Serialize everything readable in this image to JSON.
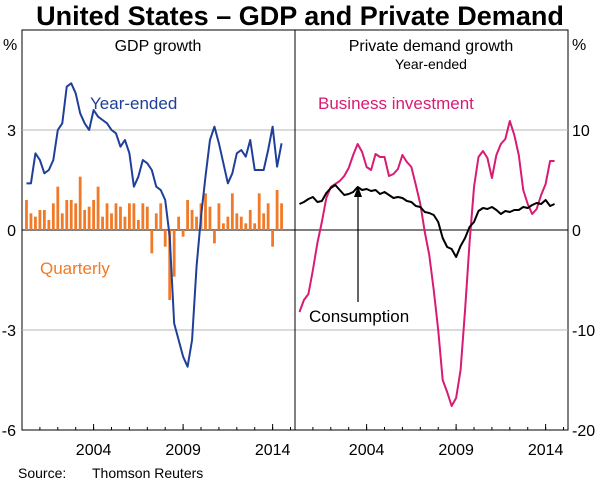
{
  "title": "United States – GDP and Private Demand",
  "source": {
    "label": "Source:",
    "value": "Thomson Reuters"
  },
  "colors": {
    "blue": "#1f3f99",
    "orange": "#f07a28",
    "magenta": "#d81b73",
    "black": "#000000",
    "grid": "#b5b5b5"
  },
  "chart_data": [
    {
      "type": "line",
      "title": "GDP growth",
      "unit_label": "%",
      "ylim": [
        -6,
        6
      ],
      "yticks": [
        -6,
        -3,
        0,
        3
      ],
      "xlim": [
        2000.0,
        2015.25
      ],
      "xticks": [
        {
          "label": "2004",
          "value": 2004.0
        },
        {
          "label": "2009",
          "value": 2009.0
        },
        {
          "label": "2014",
          "value": 2014.0
        }
      ],
      "series": [
        {
          "name": "Year-ended",
          "type": "line",
          "color": "#1f3f99",
          "x": [
            2000.25,
            2000.5,
            2000.75,
            2001.0,
            2001.25,
            2001.5,
            2001.75,
            2002.0,
            2002.25,
            2002.5,
            2002.75,
            2003.0,
            2003.25,
            2003.5,
            2003.75,
            2004.0,
            2004.25,
            2004.5,
            2004.75,
            2005.0,
            2005.25,
            2005.5,
            2005.75,
            2006.0,
            2006.25,
            2006.5,
            2006.75,
            2007.0,
            2007.25,
            2007.5,
            2007.75,
            2008.0,
            2008.25,
            2008.5,
            2008.75,
            2009.0,
            2009.25,
            2009.5,
            2009.75,
            2010.0,
            2010.25,
            2010.5,
            2010.75,
            2011.0,
            2011.25,
            2011.5,
            2011.75,
            2012.0,
            2012.25,
            2012.5,
            2012.75,
            2013.0,
            2013.25,
            2013.5,
            2013.75,
            2014.0,
            2014.25,
            2014.5
          ],
          "values": [
            1.4,
            1.4,
            2.3,
            2.1,
            1.7,
            1.8,
            2.1,
            3.0,
            3.2,
            4.3,
            4.4,
            4.1,
            3.5,
            3.2,
            3.0,
            3.6,
            3.4,
            3.3,
            3.2,
            3.0,
            2.9,
            2.5,
            2.7,
            2.3,
            1.3,
            1.6,
            2.1,
            2.0,
            1.8,
            1.3,
            1.2,
            0.9,
            -0.2,
            -2.8,
            -3.3,
            -3.8,
            -4.1,
            -3.3,
            -1.1,
            0.4,
            1.6,
            2.7,
            3.1,
            2.6,
            2.0,
            1.4,
            1.7,
            2.3,
            2.4,
            2.2,
            2.7,
            1.8,
            1.8,
            1.8,
            2.4,
            3.1,
            1.9,
            2.6
          ]
        },
        {
          "name": "Quarterly",
          "type": "bar",
          "color": "#f07a28",
          "x": [
            2000.25,
            2000.5,
            2000.75,
            2001.0,
            2001.25,
            2001.5,
            2001.75,
            2002.0,
            2002.25,
            2002.5,
            2002.75,
            2003.0,
            2003.25,
            2003.5,
            2003.75,
            2004.0,
            2004.25,
            2004.5,
            2004.75,
            2005.0,
            2005.25,
            2005.5,
            2005.75,
            2006.0,
            2006.25,
            2006.5,
            2006.75,
            2007.0,
            2007.25,
            2007.5,
            2007.75,
            2008.0,
            2008.25,
            2008.5,
            2008.75,
            2009.0,
            2009.25,
            2009.5,
            2009.75,
            2010.0,
            2010.25,
            2010.5,
            2010.75,
            2011.0,
            2011.25,
            2011.5,
            2011.75,
            2012.0,
            2012.25,
            2012.5,
            2012.75,
            2013.0,
            2013.25,
            2013.5,
            2013.75,
            2014.0,
            2014.25,
            2014.5
          ],
          "values": [
            0.9,
            0.5,
            0.4,
            0.6,
            0.6,
            0.3,
            0.8,
            1.3,
            0.5,
            0.9,
            0.9,
            0.8,
            1.6,
            0.6,
            0.7,
            0.9,
            1.3,
            0.4,
            0.8,
            0.5,
            0.8,
            0.7,
            0.4,
            0.8,
            0.8,
            0.3,
            0.8,
            0.7,
            -0.7,
            0.5,
            0.8,
            -0.5,
            -2.1,
            -1.4,
            0.4,
            -0.2,
            0.9,
            0.6,
            0.4,
            0.8,
            1.1,
            0.7,
            -0.4,
            0.8,
            0.2,
            0.4,
            1.1,
            0.5,
            0.4,
            0.2,
            0.6,
            0.2,
            1.1,
            0.5,
            0.8,
            -0.5,
            1.2,
            0.8
          ]
        }
      ]
    },
    {
      "type": "line",
      "title": "Private demand growth",
      "subtitle": "Year-ended",
      "unit_label": "%",
      "ylim": [
        -20,
        20
      ],
      "yticks": [
        -20,
        -10,
        0,
        10
      ],
      "xlim": [
        2000.0,
        2015.25
      ],
      "xticks": [
        {
          "label": "2004",
          "value": 2004.0
        },
        {
          "label": "2009",
          "value": 2009.0
        },
        {
          "label": "2014",
          "value": 2014.0
        }
      ],
      "series": [
        {
          "name": "Business investment",
          "type": "line",
          "color": "#d81b73",
          "x": [
            2000.25,
            2000.5,
            2000.75,
            2001.0,
            2001.25,
            2001.5,
            2001.75,
            2002.0,
            2002.25,
            2002.5,
            2002.75,
            2003.0,
            2003.25,
            2003.5,
            2003.75,
            2004.0,
            2004.25,
            2004.5,
            2004.75,
            2005.0,
            2005.25,
            2005.5,
            2005.75,
            2006.0,
            2006.25,
            2006.5,
            2006.75,
            2007.0,
            2007.25,
            2007.5,
            2007.75,
            2008.0,
            2008.25,
            2008.5,
            2008.75,
            2009.0,
            2009.25,
            2009.5,
            2009.75,
            2010.0,
            2010.25,
            2010.5,
            2010.75,
            2011.0,
            2011.25,
            2011.5,
            2011.75,
            2012.0,
            2012.25,
            2012.5,
            2012.75,
            2013.0,
            2013.25,
            2013.5,
            2013.75,
            2014.0,
            2014.25,
            2014.5
          ],
          "values": [
            -8.2,
            -7.0,
            -6.4,
            -4.0,
            -1.3,
            0.8,
            3.2,
            4.3,
            4.6,
            4.9,
            5.4,
            6.2,
            7.5,
            8.6,
            7.8,
            6.3,
            6.0,
            7.6,
            7.3,
            7.3,
            5.4,
            5.6,
            6.1,
            7.5,
            6.8,
            6.3,
            4.5,
            2.6,
            -0.2,
            -2.5,
            -6.0,
            -10.0,
            -15.0,
            -16.2,
            -17.6,
            -16.8,
            -14.0,
            -8.0,
            -1.3,
            4.3,
            7.3,
            7.9,
            7.2,
            5.2,
            7.5,
            8.6,
            9.1,
            10.9,
            9.5,
            7.5,
            4.0,
            2.6,
            1.6,
            2.1,
            3.5,
            4.6,
            6.9,
            6.9
          ]
        },
        {
          "name": "Consumption",
          "type": "line",
          "color": "#000000",
          "x": [
            2000.25,
            2000.5,
            2000.75,
            2001.0,
            2001.25,
            2001.5,
            2001.75,
            2002.0,
            2002.25,
            2002.5,
            2002.75,
            2003.0,
            2003.25,
            2003.5,
            2003.75,
            2004.0,
            2004.25,
            2004.5,
            2004.75,
            2005.0,
            2005.25,
            2005.5,
            2005.75,
            2006.0,
            2006.25,
            2006.5,
            2006.75,
            2007.0,
            2007.25,
            2007.5,
            2007.75,
            2008.0,
            2008.25,
            2008.5,
            2008.75,
            2009.0,
            2009.25,
            2009.5,
            2009.75,
            2010.0,
            2010.25,
            2010.5,
            2010.75,
            2011.0,
            2011.25,
            2011.5,
            2011.75,
            2012.0,
            2012.25,
            2012.5,
            2012.75,
            2013.0,
            2013.25,
            2013.5,
            2013.75,
            2014.0,
            2014.25,
            2014.5
          ],
          "values": [
            2.6,
            2.8,
            3.1,
            3.3,
            2.8,
            2.9,
            3.7,
            4.2,
            4.5,
            4.0,
            3.5,
            3.6,
            3.8,
            4.3,
            4.0,
            4.1,
            3.9,
            4.0,
            3.6,
            3.8,
            3.5,
            3.2,
            3.3,
            3.2,
            2.9,
            2.8,
            2.4,
            2.3,
            1.8,
            1.7,
            1.5,
            0.8,
            -0.8,
            -1.7,
            -1.9,
            -2.7,
            -1.6,
            -0.8,
            0.3,
            0.8,
            1.9,
            2.2,
            2.1,
            2.3,
            2.0,
            1.6,
            1.9,
            1.8,
            2.0,
            2.0,
            2.3,
            2.2,
            2.5,
            2.7,
            2.6,
            3.0,
            2.4,
            2.6
          ]
        }
      ],
      "annotation": "Consumption"
    }
  ]
}
